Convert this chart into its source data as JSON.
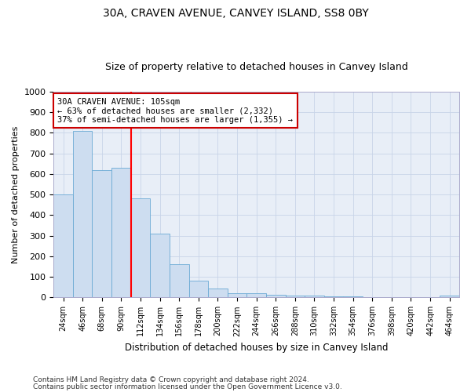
{
  "title": "30A, CRAVEN AVENUE, CANVEY ISLAND, SS8 0BY",
  "subtitle": "Size of property relative to detached houses in Canvey Island",
  "xlabel": "Distribution of detached houses by size in Canvey Island",
  "ylabel": "Number of detached properties",
  "footnote1": "Contains HM Land Registry data © Crown copyright and database right 2024.",
  "footnote2": "Contains public sector information licensed under the Open Government Licence v3.0.",
  "categories": [
    "24sqm",
    "46sqm",
    "68sqm",
    "90sqm",
    "112sqm",
    "134sqm",
    "156sqm",
    "178sqm",
    "200sqm",
    "222sqm",
    "244sqm",
    "266sqm",
    "288sqm",
    "310sqm",
    "332sqm",
    "354sqm",
    "376sqm",
    "398sqm",
    "420sqm",
    "442sqm",
    "464sqm"
  ],
  "values": [
    500,
    810,
    620,
    630,
    480,
    310,
    160,
    80,
    45,
    22,
    20,
    15,
    10,
    8,
    5,
    4,
    3,
    2,
    2,
    2,
    10
  ],
  "bar_color": "#cdddf0",
  "bar_edge_color": "#6aaad4",
  "ref_line_index": 4,
  "ref_line_label": "30A CRAVEN AVENUE: 105sqm",
  "ref_line_pct_smaller": "63%",
  "ref_line_count_smaller": "2,332",
  "ref_line_pct_larger": "37%",
  "ref_line_count_larger": "1,355",
  "ylim": [
    0,
    1000
  ],
  "yticks": [
    0,
    100,
    200,
    300,
    400,
    500,
    600,
    700,
    800,
    900,
    1000
  ],
  "background_color": "#ffffff",
  "grid_color": "#c8d4e8",
  "title_fontsize": 10,
  "subtitle_fontsize": 9,
  "footnote_fontsize": 6.5,
  "annotation_box_facecolor": "#ffffff",
  "annotation_box_edgecolor": "#cc0000",
  "annotation_fontsize": 7.5
}
